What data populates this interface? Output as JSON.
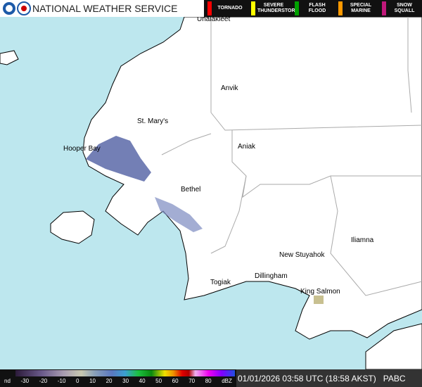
{
  "header": {
    "title": "NATIONAL WEATHER SERVICE",
    "warnings": [
      {
        "label": "TORNADO",
        "color": "#ff0000"
      },
      {
        "label": "SEVERE THUNDERSTORM",
        "color": "#ffff00"
      },
      {
        "label": "FLASH FLOOD",
        "color": "#00a000"
      },
      {
        "label": "SPECIAL MARINE",
        "color": "#ff9900"
      },
      {
        "label": "SNOW SQUALL",
        "color": "#c0187a"
      }
    ]
  },
  "places": [
    "Unalakleet",
    "Anvik",
    "St. Mary's",
    "Hooper Bay",
    "Aniak",
    "Bethel",
    "New Stuyahok",
    "Iliamna",
    "Dillingham",
    "Togiak",
    "King Salmon"
  ],
  "scale": {
    "labels": [
      "nd",
      "-30",
      "-20",
      "-10",
      "0",
      "10",
      "20",
      "30",
      "40",
      "50",
      "60",
      "70",
      "80",
      "dBZ"
    ]
  },
  "footer": {
    "timestamp": "01/01/2026 03:58 UTC (18:58 AKST)",
    "station": "PABC"
  }
}
